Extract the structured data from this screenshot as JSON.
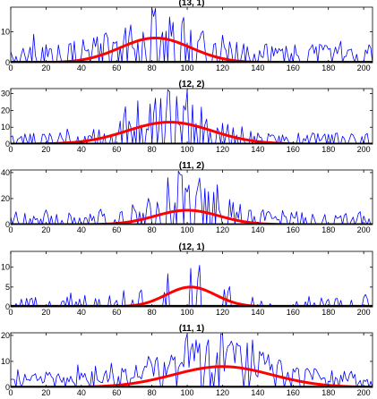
{
  "chart_data": [
    {
      "type": "line",
      "title": "(13, 1)",
      "xlim": [
        0,
        205
      ],
      "ylim": [
        0,
        18
      ],
      "xticks": [
        "0",
        "20",
        "40",
        "60",
        "80",
        "100",
        "120",
        "140",
        "160",
        "180",
        "200"
      ],
      "yticks": [
        "0",
        "10"
      ],
      "ytick_values": [
        0,
        10
      ],
      "series": [
        {
          "color": "#0000ff",
          "seed": 13,
          "density": 0.62,
          "peak": 17,
          "base": 6,
          "env_mean": 85,
          "env_sd": 22,
          "env_amp": 1.0
        },
        {
          "color": "#ff0000",
          "shape": "gaussian",
          "amp": 8,
          "mean": 82,
          "sd": 20,
          "lw": 3
        },
        {
          "color": "#000000",
          "shape": "zero"
        }
      ]
    },
    {
      "type": "line",
      "title": "(12, 2)",
      "xlim": [
        0,
        205
      ],
      "ylim": [
        0,
        33
      ],
      "xticks": [
        "0",
        "20",
        "40",
        "60",
        "80",
        "100",
        "120",
        "140",
        "160",
        "180",
        "200"
      ],
      "yticks": [
        "0",
        "10",
        "20",
        "30"
      ],
      "ytick_values": [
        0,
        10,
        20,
        30
      ],
      "series": [
        {
          "color": "#0000ff",
          "seed": 12,
          "density": 0.5,
          "peak": 30,
          "base": 7,
          "env_mean": 92,
          "env_sd": 20,
          "env_amp": 1.0
        },
        {
          "color": "#ff0000",
          "shape": "gaussian",
          "amp": 13,
          "mean": 90,
          "sd": 24,
          "lw": 3
        },
        {
          "color": "#000000",
          "shape": "zero"
        }
      ]
    },
    {
      "type": "line",
      "title": "(11, 2)",
      "xlim": [
        0,
        205
      ],
      "ylim": [
        0,
        42
      ],
      "xticks": [
        "0",
        "20",
        "40",
        "60",
        "80",
        "100",
        "120",
        "140",
        "160",
        "180",
        "200"
      ],
      "yticks": [
        "0",
        "20",
        "40"
      ],
      "ytick_values": [
        0,
        20,
        40
      ],
      "series": [
        {
          "color": "#0000ff",
          "seed": 112,
          "density": 0.55,
          "peak": 40,
          "base": 10,
          "env_mean": 100,
          "env_sd": 18,
          "env_amp": 1.0
        },
        {
          "color": "#ff0000",
          "shape": "gaussian",
          "amp": 11,
          "mean": 100,
          "sd": 18,
          "lw": 3
        },
        {
          "color": "#000000",
          "shape": "zero"
        }
      ]
    },
    {
      "type": "line",
      "title": "(12, 1)",
      "xlim": [
        0,
        205
      ],
      "ylim": [
        0,
        14
      ],
      "xticks": [
        "0",
        "20",
        "40",
        "60",
        "80",
        "100",
        "120",
        "140",
        "160",
        "180",
        "200"
      ],
      "yticks": [
        "0",
        "5",
        "10"
      ],
      "ytick_values": [
        0,
        5,
        10
      ],
      "series": [
        {
          "color": "#0000ff",
          "seed": 121,
          "density": 0.22,
          "peak": 13,
          "base": 3,
          "env_mean": 100,
          "env_sd": 14,
          "env_amp": 1.0
        },
        {
          "color": "#ff0000",
          "shape": "gaussian",
          "amp": 5,
          "mean": 102,
          "sd": 14,
          "lw": 3
        },
        {
          "color": "#000000",
          "shape": "zero"
        }
      ]
    },
    {
      "type": "line",
      "title": "(11, 1)",
      "xlim": [
        0,
        205
      ],
      "ylim": [
        0,
        21
      ],
      "xticks": [
        "0",
        "20",
        "40",
        "60",
        "80",
        "100",
        "120",
        "140",
        "160",
        "180",
        "200"
      ],
      "yticks": [
        "0",
        "10",
        "20"
      ],
      "ytick_values": [
        0,
        10,
        20
      ],
      "series": [
        {
          "color": "#0000ff",
          "seed": 111,
          "density": 0.8,
          "peak": 20,
          "base": 6,
          "env_mean": 118,
          "env_sd": 26,
          "env_amp": 1.0
        },
        {
          "color": "#ff0000",
          "shape": "gaussian",
          "amp": 8,
          "mean": 120,
          "sd": 28,
          "lw": 3
        },
        {
          "color": "#000000",
          "shape": "zero"
        }
      ]
    }
  ]
}
